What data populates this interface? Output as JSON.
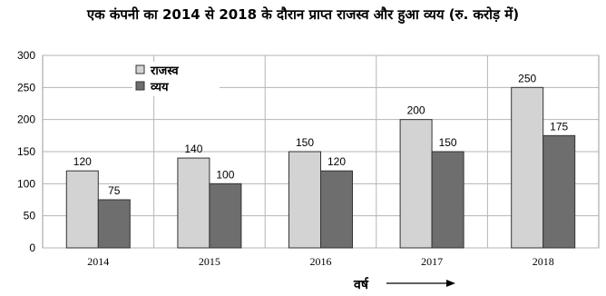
{
  "chart_data": {
    "type": "bar",
    "title": "एक कंपनी का 2014 से 2018 के दौरान प्राप्त राजस्व और हुआ व्यय (रु. करोड़ में)",
    "categories": [
      "2014",
      "2015",
      "2016",
      "2017",
      "2018"
    ],
    "series": [
      {
        "name": "राजस्व",
        "values": [
          120,
          140,
          150,
          200,
          250
        ],
        "color": "#d3d3d3"
      },
      {
        "name": "व्यय",
        "values": [
          75,
          100,
          120,
          150,
          175
        ],
        "color": "#6e6e6e"
      }
    ],
    "xlabel": "वर्ष",
    "ylabel": "",
    "ylim": [
      0,
      300
    ],
    "yticks": [
      0,
      50,
      100,
      150,
      200,
      250,
      300
    ],
    "grid": true,
    "legend": "top-left"
  }
}
